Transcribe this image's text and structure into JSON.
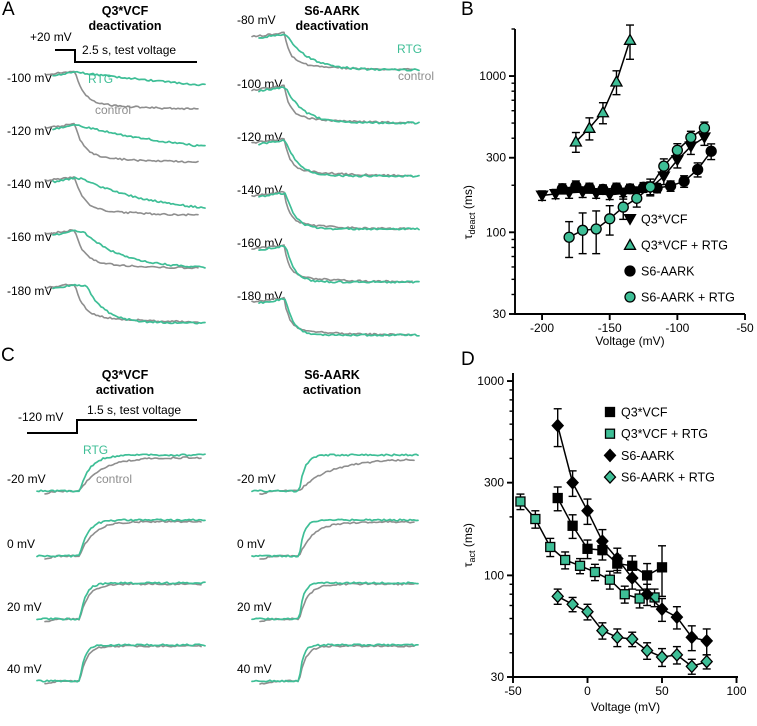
{
  "colors": {
    "rtg": "#3EBE96",
    "control": "#8E8E8E",
    "black": "#000000"
  },
  "panels": {
    "A": {
      "letter": "A",
      "columns": [
        {
          "title": [
            "Q3*VCF",
            "deactivation"
          ],
          "protocol": {
            "pre_label": "+20 mV",
            "test_label": "2.5 s, test voltage"
          },
          "annotations": {
            "rtg": "RTG",
            "control": "control"
          },
          "traces": [
            {
              "label": "-100 mV",
              "ct": 0.05,
              "rt": 1.9,
              "rd": 0
            },
            {
              "label": "-120 mV",
              "ct": 0.05,
              "rt": 0.95,
              "rd": 0.01
            },
            {
              "label": "-140 mV",
              "ct": 0.05,
              "rt": 0.5,
              "rd": 0.03
            },
            {
              "label": "-160 mV",
              "ct": 0.05,
              "rt": 0.24,
              "rd": 0.05
            },
            {
              "label": "-180 mV",
              "ct": 0.05,
              "rt": 0.11,
              "rd": 0.07
            }
          ]
        },
        {
          "title": [
            "S6-AARK",
            "deactivation"
          ],
          "annotations": {
            "rtg": "RTG",
            "control": "control"
          },
          "traces": [
            {
              "label": "-80 mV",
              "ct": 0.035,
              "rt": 0.13,
              "rd": 0.01
            },
            {
              "label": "-100 mV",
              "ct": 0.035,
              "rt": 0.1,
              "rd": 0.01
            },
            {
              "label": "-120 mV",
              "ct": 0.035,
              "rt": 0.07,
              "rd": 0.01
            },
            {
              "label": "-140 mV",
              "ct": 0.03,
              "rt": 0.055,
              "rd": 0.01
            },
            {
              "label": "-160 mV",
              "ct": 0.03,
              "rt": 0.05,
              "rd": 0.01
            },
            {
              "label": "-180 mV",
              "ct": 0.03,
              "rt": 0.045,
              "rd": 0.01
            }
          ]
        }
      ]
    },
    "B": {
      "letter": "B"
    },
    "C": {
      "letter": "C",
      "columns": [
        {
          "title": [
            "Q3*VCF",
            "activation"
          ],
          "protocol": {
            "pre_label": "-120 mV",
            "test_label": "1.5 s, test voltage"
          },
          "annotations": {
            "rtg": "RTG",
            "control": "control"
          },
          "traces": [
            {
              "label": "-20 mV",
              "g": 0.12,
              "t": 0.06,
              "po": 2.5
            },
            {
              "label": "0 mV",
              "g": 0.075,
              "t": 0.045,
              "po": 1.5
            },
            {
              "label": "20 mV",
              "g": 0.05,
              "t": 0.034,
              "po": 1
            },
            {
              "label": "40 mV",
              "g": 0.038,
              "t": 0.027,
              "po": 1
            }
          ]
        },
        {
          "title": [
            "S6-AARK",
            "activation"
          ],
          "traces": [
            {
              "label": "-20 mV",
              "g": 0.18,
              "t": 0.032,
              "po": 4
            },
            {
              "label": "0 mV",
              "g": 0.08,
              "t": 0.028,
              "po": 2
            },
            {
              "label": "20 mV",
              "g": 0.05,
              "t": 0.024,
              "po": 1
            },
            {
              "label": "40 mV",
              "g": 0.036,
              "t": 0.021,
              "po": 1
            }
          ]
        }
      ]
    },
    "D": {
      "letter": "D"
    }
  },
  "chart_data": [
    {
      "panel": "B",
      "type": "scatter",
      "title": "",
      "xlabel": "Voltage (mV)",
      "ylabel": "τdeact (ms)",
      "ylabel_parts": {
        "tau": "τ",
        "sub": "deact",
        "unit": " (ms)"
      },
      "x_axis": {
        "lim": [
          -220,
          -50
        ],
        "ticks": [
          -200,
          -150,
          -100,
          -50
        ]
      },
      "y_axis": {
        "scale": "log",
        "lim": [
          30,
          2000
        ],
        "ticks": [
          30,
          100,
          300,
          1000
        ],
        "minor_ticks": [
          40,
          50,
          60,
          70,
          80,
          90,
          200,
          400,
          500,
          600,
          700,
          800,
          900,
          2000
        ]
      },
      "legend_position": "inside-bottom-right",
      "series": [
        {
          "name": "Q3*VCF",
          "marker": "triangle-down",
          "fill": "#000000",
          "x": [
            -200,
            -190,
            -180,
            -170,
            -160,
            -150,
            -140,
            -130,
            -120,
            -110,
            -100,
            -90,
            -80
          ],
          "y": [
            172,
            176,
            179,
            181,
            177,
            174,
            177,
            181,
            192,
            228,
            290,
            355,
            405
          ],
          "err": [
            12,
            12,
            14,
            14,
            12,
            12,
            14,
            14,
            18,
            26,
            32,
            40,
            45
          ]
        },
        {
          "name": "Q3*VCF + RTG",
          "marker": "triangle-up",
          "fill": "#3EBE96",
          "x": [
            -175,
            -165,
            -155,
            -145,
            -135
          ],
          "y": [
            380,
            465,
            585,
            920,
            1700
          ],
          "err": [
            55,
            75,
            90,
            160,
            420
          ]
        },
        {
          "name": "S6-AARK",
          "marker": "circle",
          "fill": "#000000",
          "x": [
            -185,
            -175,
            -165,
            -155,
            -145,
            -135,
            -125,
            -115,
            -105,
            -95,
            -85,
            -75
          ],
          "y": [
            190,
            197,
            192,
            188,
            192,
            190,
            194,
            192,
            198,
            212,
            252,
            330
          ],
          "err": [
            14,
            16,
            14,
            13,
            14,
            13,
            14,
            13,
            15,
            18,
            26,
            38
          ]
        },
        {
          "name": "S6-AARK + RTG",
          "marker": "circle",
          "fill": "#3EBE96",
          "x": [
            -180,
            -170,
            -160,
            -150,
            -140,
            -130,
            -120,
            -110,
            -100,
            -90,
            -80
          ],
          "y": [
            93,
            103,
            105,
            122,
            145,
            165,
            195,
            265,
            335,
            405,
            465
          ],
          "err": [
            24,
            30,
            32,
            26,
            24,
            20,
            24,
            30,
            34,
            38,
            42
          ]
        }
      ]
    },
    {
      "panel": "D",
      "type": "scatter",
      "title": "",
      "xlabel": "Voltage (mV)",
      "ylabel": "τact (ms)",
      "ylabel_parts": {
        "tau": "τ",
        "sub": "act",
        "unit": " (ms)"
      },
      "x_axis": {
        "lim": [
          -50,
          101
        ],
        "ticks": [
          -50,
          0,
          50,
          100
        ]
      },
      "y_axis": {
        "scale": "log",
        "lim": [
          30,
          1100
        ],
        "ticks": [
          30,
          100,
          300,
          1000
        ],
        "minor_ticks": [
          40,
          50,
          60,
          70,
          80,
          90,
          200,
          400,
          500,
          600,
          700,
          800,
          900
        ]
      },
      "legend_position": "inside-top-right",
      "series": [
        {
          "name": "Q3*VCF",
          "marker": "square",
          "fill": "#000000",
          "x": [
            -20,
            -10,
            0,
            10,
            20,
            30,
            40,
            50
          ],
          "y": [
            250,
            180,
            137,
            135,
            115,
            112,
            100,
            110
          ],
          "err": [
            35,
            25,
            15,
            15,
            12,
            14,
            15,
            32
          ]
        },
        {
          "name": "Q3*VCF + RTG",
          "marker": "square",
          "fill": "#3EBE96",
          "x": [
            -45,
            -35,
            -25,
            -15,
            -5,
            5,
            15,
            25,
            35,
            45
          ],
          "y": [
            240,
            195,
            140,
            120,
            112,
            104,
            95,
            80,
            76,
            77
          ],
          "err": [
            22,
            20,
            15,
            12,
            10,
            10,
            10,
            8,
            8,
            8
          ]
        },
        {
          "name": "S6-AARK",
          "marker": "diamond",
          "fill": "#000000",
          "x": [
            -20,
            -10,
            0,
            10,
            20,
            30,
            40,
            50,
            60,
            70,
            80
          ],
          "y": [
            590,
            300,
            215,
            150,
            122,
            97,
            80,
            67,
            61,
            48,
            46
          ],
          "err": [
            130,
            45,
            32,
            22,
            16,
            12,
            10,
            9,
            8,
            7,
            7
          ]
        },
        {
          "name": "S6-AARK + RTG",
          "marker": "diamond",
          "fill": "#3EBE96",
          "x": [
            -20,
            -10,
            0,
            10,
            20,
            30,
            40,
            50,
            60,
            70,
            80
          ],
          "y": [
            78,
            71,
            65,
            52,
            48,
            47,
            41,
            38,
            39,
            34,
            36
          ],
          "err": [
            7,
            6,
            6,
            5,
            5,
            4,
            4,
            4,
            4,
            3,
            3
          ]
        }
      ]
    }
  ]
}
